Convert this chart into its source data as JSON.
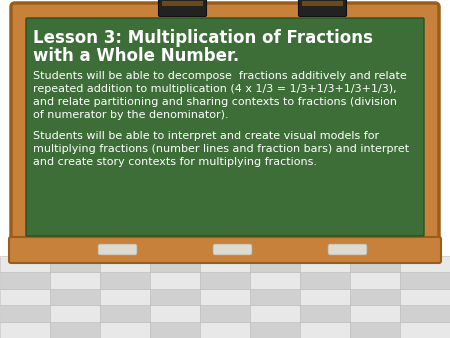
{
  "title_line1": "Lesson 3: Multiplication of Fractions",
  "title_line2": "with a Whole Number.",
  "body1_line1": "Students will be able to decompose  fractions additively and relate",
  "body1_line2": "repeated addition to multiplication (4 x 1/3 = 1/3+1/3+1/3+1/3),",
  "body1_line3": "and relate partitioning and sharing contexts to fractions (division",
  "body1_line4": "of numerator by the denominator).",
  "body2_line1": "Students will be able to interpret and create visual models for",
  "body2_line2": "multiplying fractions (number lines and fraction bars) and interpret",
  "body2_line3": "and create story contexts for multiplying fractions.",
  "bg_color": "#ffffff",
  "board_color": "#3d6e38",
  "frame_outer_color": "#c8813a",
  "frame_dark_color": "#9a5e1a",
  "text_color": "#ffffff",
  "eraser_color": "#222222",
  "chalk_color": "#dddbd0",
  "title_fontsize": 12.0,
  "body_fontsize": 8.0,
  "floor_light": "#e8e8e8",
  "floor_dark": "#d0d0d0"
}
